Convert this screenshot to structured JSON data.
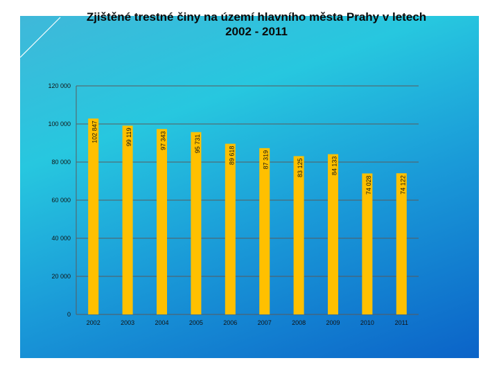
{
  "slide": {
    "title_line1": "Zjištěné trestné činy na území hlavního města Prahy v letech",
    "title_line2": "2002 - 2011"
  },
  "colors": {
    "bar": "#ffc000",
    "gridline": "#5a5a5a"
  },
  "chart_data": {
    "type": "bar",
    "title": "Zjištěné trestné činy na území hlavního města Prahy v letech 2002 - 2011",
    "categories": [
      "2002",
      "2003",
      "2004",
      "2005",
      "2006",
      "2007",
      "2008",
      "2009",
      "2010",
      "2011"
    ],
    "values": [
      102847,
      99119,
      97343,
      95731,
      89618,
      87319,
      83125,
      84133,
      74028,
      74122
    ],
    "data_labels": [
      "102 847",
      "99 119",
      "97 343",
      "95 731",
      "89 618",
      "87 319",
      "83 125",
      "84 133",
      "74 028",
      "74 122"
    ],
    "ylim": [
      0,
      120000
    ],
    "y_ticks": [
      0,
      20000,
      40000,
      60000,
      80000,
      100000,
      120000
    ],
    "y_tick_labels": [
      "0",
      "20 000",
      "40 000",
      "60 000",
      "80 000",
      "100 000",
      "120 000"
    ],
    "xlabel": "",
    "ylabel": "",
    "grid": true
  }
}
